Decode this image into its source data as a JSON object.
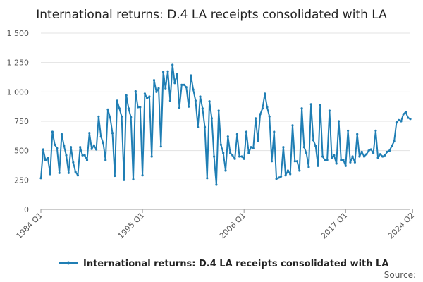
{
  "chart_data": {
    "type": "line",
    "title": "International returns: D.4 LA receipts consolidated with LA",
    "xlabel": "",
    "ylabel": "",
    "ylim": [
      0,
      1500
    ],
    "yticks": [
      {
        "value": 0,
        "label": "0"
      },
      {
        "value": 250,
        "label": "250"
      },
      {
        "value": 500,
        "label": "500"
      },
      {
        "value": 750,
        "label": "750"
      },
      {
        "value": 1000,
        "label": "1 000"
      },
      {
        "value": 1250,
        "label": "1 250"
      },
      {
        "value": 1500,
        "label": "1 500"
      }
    ],
    "xticks": [
      {
        "index": 0,
        "label": "1984 Q1"
      },
      {
        "index": 44,
        "label": "1995 Q1"
      },
      {
        "index": 88,
        "label": "2006 Q1"
      },
      {
        "index": 132,
        "label": "2017 Q1"
      },
      {
        "index": 161,
        "label": "2024 Q2"
      }
    ],
    "grid": true,
    "legend": "bottom",
    "source_label": "Source:",
    "series": [
      {
        "name": "International returns: D.4 LA receipts consolidated with LA",
        "color": "#1f7eb4",
        "values": [
          265,
          510,
          420,
          440,
          300,
          660,
          550,
          520,
          310,
          640,
          540,
          460,
          310,
          530,
          400,
          320,
          290,
          530,
          460,
          460,
          420,
          650,
          515,
          545,
          510,
          790,
          620,
          565,
          420,
          850,
          780,
          650,
          285,
          925,
          860,
          790,
          250,
          970,
          860,
          785,
          255,
          1005,
          870,
          870,
          290,
          985,
          945,
          960,
          450,
          1100,
          1000,
          1030,
          535,
          1170,
          1030,
          1175,
          925,
          1230,
          1075,
          1150,
          865,
          1060,
          1060,
          1040,
          875,
          1140,
          1020,
          925,
          700,
          960,
          860,
          700,
          265,
          920,
          775,
          450,
          210,
          840,
          550,
          480,
          330,
          620,
          480,
          460,
          430,
          640,
          450,
          450,
          430,
          660,
          480,
          530,
          520,
          775,
          580,
          810,
          860,
          985,
          870,
          790,
          410,
          660,
          260,
          270,
          280,
          530,
          290,
          330,
          300,
          715,
          410,
          410,
          330,
          860,
          530,
          480,
          360,
          895,
          590,
          540,
          370,
          890,
          450,
          420,
          420,
          840,
          440,
          460,
          390,
          750,
          420,
          420,
          370,
          670,
          400,
          450,
          400,
          640,
          450,
          490,
          450,
          470,
          500,
          510,
          480,
          670,
          440,
          470,
          450,
          460,
          490,
          500,
          540,
          580,
          740,
          760,
          750,
          810,
          830,
          780,
          770
        ]
      }
    ]
  }
}
